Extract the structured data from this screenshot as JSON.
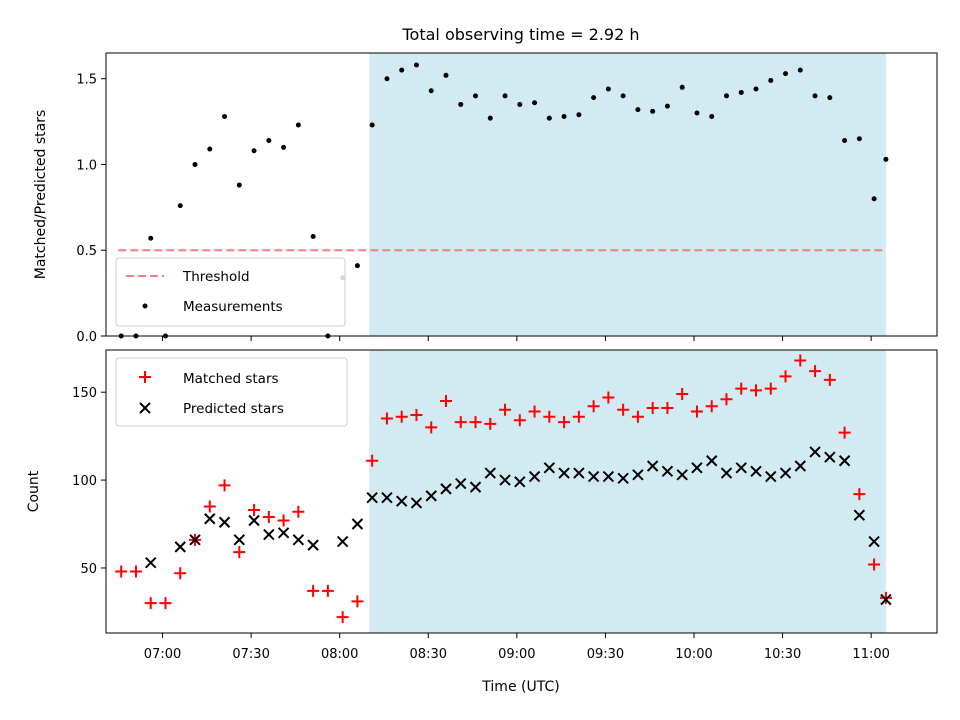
{
  "title": "Total observing time = 2.92 h",
  "xlabel": "Time (UTC)",
  "x_ticks": [
    {
      "label": "07:00",
      "t": 420
    },
    {
      "label": "07:30",
      "t": 450
    },
    {
      "label": "08:00",
      "t": 480
    },
    {
      "label": "08:30",
      "t": 510
    },
    {
      "label": "09:00",
      "t": 540
    },
    {
      "label": "09:30",
      "t": 570
    },
    {
      "label": "10:00",
      "t": 600
    },
    {
      "label": "10:30",
      "t": 630
    },
    {
      "label": "11:00",
      "t": 660
    }
  ],
  "shaded_region": {
    "start": "08:10",
    "end": "11:05",
    "color": "#add8e6"
  },
  "chart_data": [
    {
      "type": "scatter",
      "ylabel": "Matched/Predicted stars",
      "ylim": [
        0,
        1.65
      ],
      "y_ticks": [
        {
          "label": "0.0",
          "v": 0
        },
        {
          "label": "0.5",
          "v": 0.5
        },
        {
          "label": "1.0",
          "v": 1.0
        },
        {
          "label": "1.5",
          "v": 1.5
        }
      ],
      "threshold": {
        "name": "Threshold",
        "value": 0.5,
        "x_start": "06:45",
        "x_end": "11:05",
        "color": "#f08080"
      },
      "series": [
        {
          "name": "Measurements",
          "marker": "dot",
          "color": "#000000",
          "x": [
            "06:46",
            "06:51",
            "06:56",
            "07:01",
            "07:06",
            "07:11",
            "07:16",
            "07:21",
            "07:26",
            "07:31",
            "07:36",
            "07:41",
            "07:46",
            "07:51",
            "07:56",
            "08:01",
            "08:06",
            "08:11",
            "08:16",
            "08:21",
            "08:26",
            "08:31",
            "08:36",
            "08:41",
            "08:46",
            "08:51",
            "08:56",
            "09:01",
            "09:06",
            "09:11",
            "09:16",
            "09:21",
            "09:26",
            "09:31",
            "09:36",
            "09:41",
            "09:46",
            "09:51",
            "09:56",
            "10:01",
            "10:06",
            "10:11",
            "10:16",
            "10:21",
            "10:26",
            "10:31",
            "10:36",
            "10:41",
            "10:46",
            "10:51",
            "10:56",
            "11:01",
            "11:05"
          ],
          "values": [
            0.0,
            0.0,
            0.57,
            0.0,
            0.76,
            1.0,
            1.09,
            1.28,
            0.88,
            1.08,
            1.14,
            1.1,
            1.23,
            0.58,
            0.0,
            0.34,
            0.41,
            1.23,
            1.5,
            1.55,
            1.58,
            1.43,
            1.52,
            1.35,
            1.4,
            1.27,
            1.4,
            1.35,
            1.36,
            1.27,
            1.28,
            1.29,
            1.39,
            1.44,
            1.4,
            1.32,
            1.31,
            1.34,
            1.45,
            1.3,
            1.28,
            1.4,
            1.42,
            1.44,
            1.49,
            1.53,
            1.55,
            1.4,
            1.39,
            1.14,
            1.15,
            0.8,
            1.03
          ]
        }
      ],
      "legend": {
        "position": "lower-left",
        "entries": [
          "Threshold",
          "Measurements"
        ]
      }
    },
    {
      "type": "scatter",
      "ylabel": "Count",
      "ylim": [
        13,
        174
      ],
      "y_ticks": [
        {
          "label": "50",
          "v": 50
        },
        {
          "label": "100",
          "v": 100
        },
        {
          "label": "150",
          "v": 150
        }
      ],
      "series": [
        {
          "name": "Matched stars",
          "marker": "plus",
          "color": "#ff0000",
          "x": [
            "06:46",
            "06:51",
            "06:56",
            "07:01",
            "07:06",
            "07:11",
            "07:16",
            "07:21",
            "07:26",
            "07:31",
            "07:36",
            "07:41",
            "07:46",
            "07:51",
            "07:56",
            "08:01",
            "08:06",
            "08:11",
            "08:16",
            "08:21",
            "08:26",
            "08:31",
            "08:36",
            "08:41",
            "08:46",
            "08:51",
            "08:56",
            "09:01",
            "09:06",
            "09:11",
            "09:16",
            "09:21",
            "09:26",
            "09:31",
            "09:36",
            "09:41",
            "09:46",
            "09:51",
            "09:56",
            "10:01",
            "10:06",
            "10:11",
            "10:16",
            "10:21",
            "10:26",
            "10:31",
            "10:36",
            "10:41",
            "10:46",
            "10:51",
            "10:56",
            "11:01",
            "11:05"
          ],
          "values": [
            48,
            48,
            30,
            30,
            47,
            66,
            85,
            97,
            59,
            83,
            79,
            77,
            82,
            37,
            37,
            22,
            31,
            111,
            135,
            136,
            137,
            130,
            145,
            133,
            133,
            132,
            140,
            134,
            139,
            136,
            133,
            136,
            142,
            147,
            140,
            136,
            141,
            141,
            149,
            139,
            142,
            146,
            152,
            151,
            152,
            159,
            168,
            162,
            157,
            127,
            92,
            52,
            33
          ]
        },
        {
          "name": "Predicted stars",
          "marker": "x",
          "color": "#000000",
          "x": [
            "06:56",
            "07:06",
            "07:11",
            "07:16",
            "07:21",
            "07:26",
            "07:31",
            "07:36",
            "07:41",
            "07:46",
            "07:51",
            "08:01",
            "08:06",
            "08:11",
            "08:16",
            "08:21",
            "08:26",
            "08:31",
            "08:36",
            "08:41",
            "08:46",
            "08:51",
            "08:56",
            "09:01",
            "09:06",
            "09:11",
            "09:16",
            "09:21",
            "09:26",
            "09:31",
            "09:36",
            "09:41",
            "09:46",
            "09:51",
            "09:56",
            "10:01",
            "10:06",
            "10:11",
            "10:16",
            "10:21",
            "10:26",
            "10:31",
            "10:36",
            "10:41",
            "10:46",
            "10:51",
            "10:56",
            "11:01",
            "11:05"
          ],
          "values": [
            53,
            62,
            66,
            78,
            76,
            66,
            77,
            69,
            70,
            66,
            63,
            65,
            75,
            90,
            90,
            88,
            87,
            91,
            95,
            98,
            96,
            104,
            100,
            99,
            102,
            107,
            104,
            104,
            102,
            102,
            101,
            103,
            108,
            105,
            103,
            107,
            111,
            104,
            107,
            105,
            102,
            104,
            108,
            116,
            113,
            111,
            80,
            65,
            32
          ]
        }
      ],
      "legend": {
        "position": "upper-left",
        "entries": [
          "Matched stars",
          "Predicted stars"
        ]
      }
    }
  ]
}
